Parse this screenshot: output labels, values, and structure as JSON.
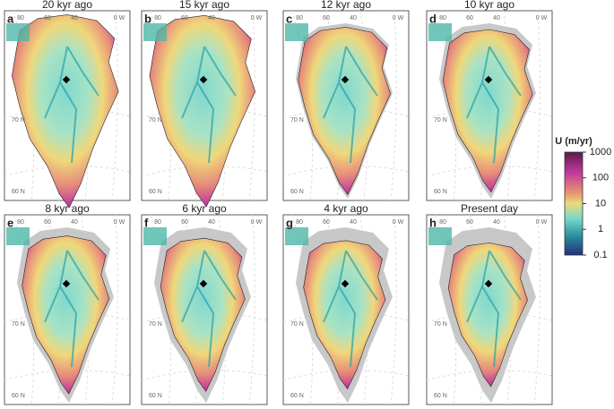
{
  "panels": [
    {
      "letter": "a",
      "title": "20 kyr ago"
    },
    {
      "letter": "b",
      "title": "15 kyr ago"
    },
    {
      "letter": "c",
      "title": "12 kyr ago"
    },
    {
      "letter": "d",
      "title": "10 kyr ago"
    },
    {
      "letter": "e",
      "title": "8 kyr ago"
    },
    {
      "letter": "f",
      "title": "6 kyr ago"
    },
    {
      "letter": "g",
      "title": "4 kyr ago"
    },
    {
      "letter": "h",
      "title": "Present day"
    }
  ],
  "lon_labels": [
    "80",
    "60",
    "40",
    "0 W"
  ],
  "lat_labels": [
    "70 N",
    "60 N"
  ],
  "colorbar": {
    "title": "U (m/yr)",
    "ticks": [
      1000,
      100,
      10,
      1,
      0.1
    ],
    "lim": [
      0.1,
      1000
    ],
    "log": true
  }
}
